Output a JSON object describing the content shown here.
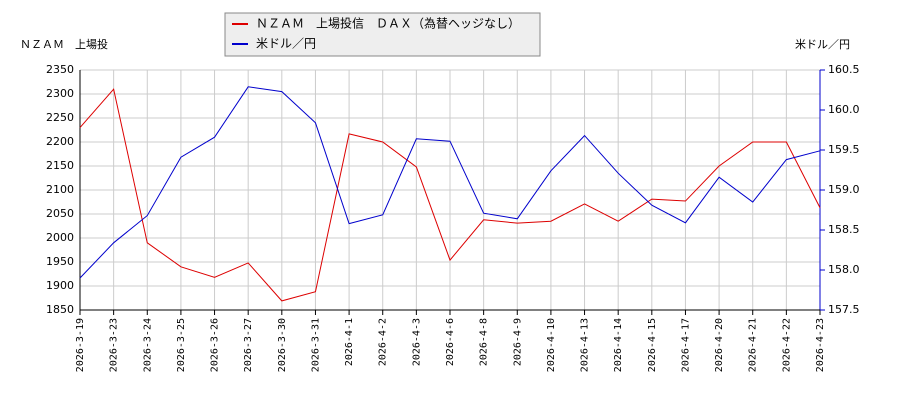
{
  "chart_data": {
    "type": "line",
    "y_label": "ＮＺＡＭ　上場投",
    "y2_label": "米ドル／円",
    "categories": [
      "2026-3-19",
      "2026-3-23",
      "2026-3-24",
      "2026-3-25",
      "2026-3-26",
      "2026-3-27",
      "2026-3-30",
      "2026-3-31",
      "2026-4-1",
      "2026-4-2",
      "2026-4-3",
      "2026-4-6",
      "2026-4-8",
      "2026-4-9",
      "2026-4-10",
      "2026-4-13",
      "2026-4-14",
      "2026-4-15",
      "2026-4-17",
      "2026-4-20",
      "2026-4-21",
      "2026-4-22",
      "2026-4-23"
    ],
    "series": [
      {
        "name": "ＮＺＡＭ　上場投信　ＤＡＸ（為替ヘッジなし）",
        "color": "#dd0000",
        "values": [
          2230,
          2310,
          1990,
          1940,
          1918,
          1948,
          1869,
          1888,
          2217,
          2200,
          2148,
          1954,
          2038,
          2031,
          2035,
          2071,
          2035,
          2081,
          2077,
          2150,
          2200,
          2200,
          2063
        ]
      },
      {
        "name": "米ドル／円",
        "color": "#0000cc",
        "axis": "y2",
        "values": [
          157.9,
          158.34,
          158.68,
          159.41,
          159.66,
          160.29,
          160.23,
          159.84,
          158.58,
          158.69,
          159.64,
          159.61,
          158.71,
          158.64,
          159.24,
          159.68,
          159.21,
          158.81,
          158.59,
          159.16,
          158.85,
          159.38,
          159.49
        ]
      }
    ],
    "ylim": [
      1850,
      2350
    ],
    "yticks": [
      1850,
      1900,
      1950,
      2000,
      2050,
      2100,
      2150,
      2200,
      2250,
      2300,
      2350
    ],
    "y2lim": [
      157.5,
      160.5
    ],
    "y2ticks": [
      157.5,
      {
        "value": 158,
        "label": "158.0"
      },
      158.5,
      {
        "value": 159,
        "label": "159.0"
      },
      159.5,
      {
        "value": 160,
        "label": "160.0"
      },
      160.5
    ],
    "grid": true
  }
}
